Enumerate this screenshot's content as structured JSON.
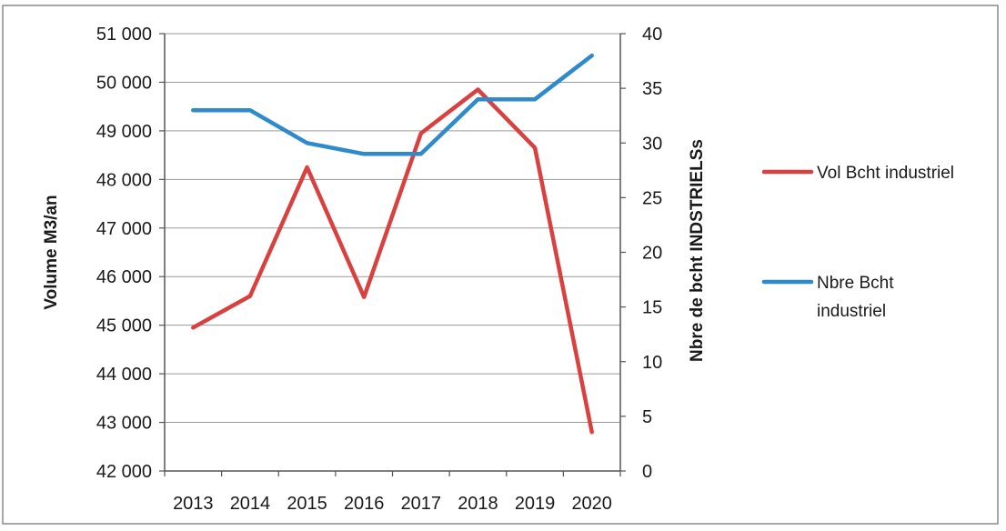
{
  "chart_data": {
    "type": "line",
    "categories": [
      "2013",
      "2014",
      "2015",
      "2016",
      "2017",
      "2018",
      "2019",
      "2020"
    ],
    "series": [
      {
        "name": "Vol Bcht industriel",
        "axis": "left",
        "color": "#d94040",
        "values": [
          44950,
          45600,
          48250,
          45580,
          48950,
          49850,
          48650,
          42800
        ]
      },
      {
        "name": "Nbre Bcht industriel",
        "axis": "right",
        "color": "#2e8acb",
        "values": [
          33,
          33,
          30,
          29,
          29,
          34,
          34,
          38
        ]
      }
    ],
    "y_left": {
      "label": "Volume M3/an",
      "range": [
        42000,
        51000
      ],
      "ticks": [
        {
          "value": 42000,
          "label": "42 000"
        },
        {
          "value": 43000,
          "label": "43 000"
        },
        {
          "value": 44000,
          "label": "44 000"
        },
        {
          "value": 45000,
          "label": "45 000"
        },
        {
          "value": 46000,
          "label": "46 000"
        },
        {
          "value": 47000,
          "label": "47 000"
        },
        {
          "value": 48000,
          "label": "48 000"
        },
        {
          "value": 49000,
          "label": "49 000"
        },
        {
          "value": 50000,
          "label": "50 000"
        },
        {
          "value": 51000,
          "label": "51 000"
        }
      ]
    },
    "y_right": {
      "label": "Nbre de bcht INDSTRIELSs",
      "range": [
        0,
        40
      ],
      "ticks": [
        {
          "value": 0,
          "label": "0"
        },
        {
          "value": 5,
          "label": "5"
        },
        {
          "value": 10,
          "label": "10"
        },
        {
          "value": 15,
          "label": "15"
        },
        {
          "value": 20,
          "label": "20"
        },
        {
          "value": 25,
          "label": "25"
        },
        {
          "value": 30,
          "label": "30"
        },
        {
          "value": 35,
          "label": "35"
        },
        {
          "value": 40,
          "label": "40"
        }
      ]
    },
    "grid": true,
    "legend_position": "right",
    "legend_entries": [
      {
        "lines": [
          "Vol Bcht industriel"
        ],
        "color": "#d94040"
      },
      {
        "lines": [
          "Nbre Bcht",
          "industriel"
        ],
        "color": "#2e8acb"
      }
    ]
  }
}
